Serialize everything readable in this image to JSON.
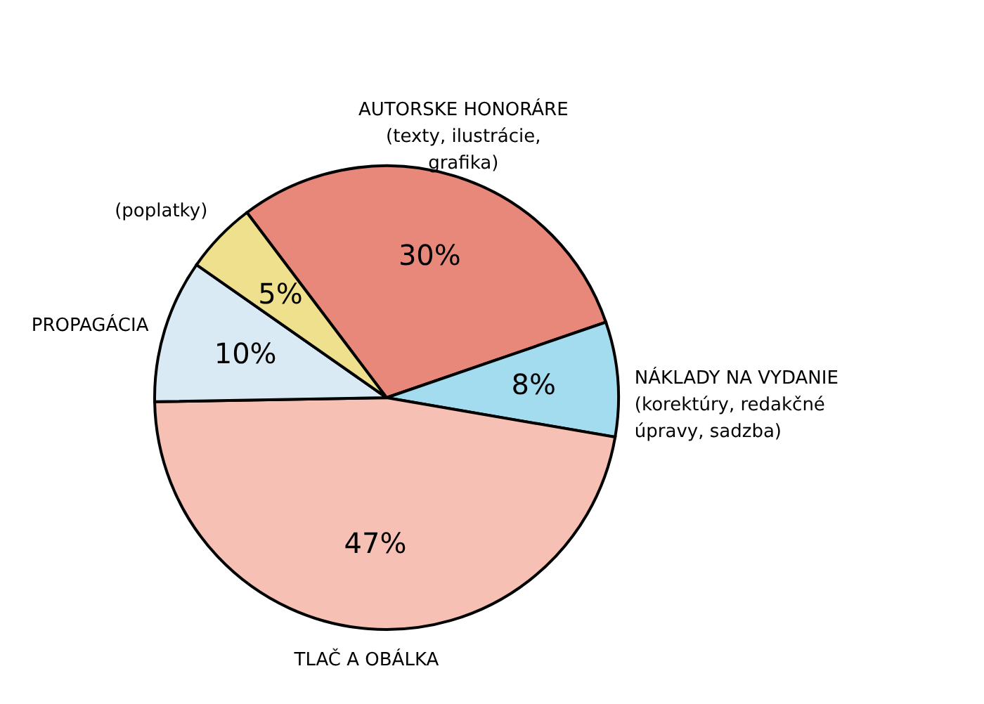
{
  "chart_data": {
    "type": "pie",
    "categories": [
      "AUTORSKE HONORÁRE\n(texty, ilustrácie,\ngrafika)",
      "NÁKLADY NA VYDANIE\n(korektúry, redakčné\núpravy, sadzba)",
      "TLAČ A OBÁLKA",
      "PROPAGÁCIA",
      "(poplatky)"
    ],
    "values": [
      30,
      8,
      47,
      10,
      5
    ],
    "colors": [
      "#e8887a",
      "#a3dcee",
      "#f6c1b4",
      "#d9eaf5",
      "#efe08e"
    ],
    "value_labels": [
      "30%",
      "8%",
      "47%",
      "10%",
      "5%"
    ]
  }
}
